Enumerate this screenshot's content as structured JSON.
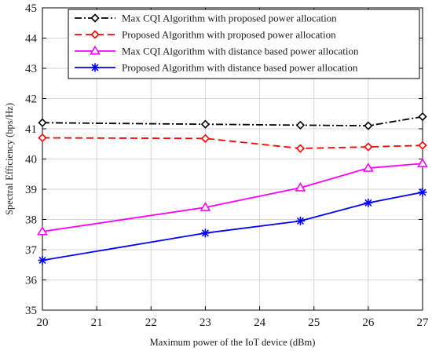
{
  "chart_data": {
    "type": "line",
    "title": "",
    "xlabel": "Maximum power of the IoT device (dBm)",
    "ylabel": "Spectral Efficiency (bps/Hz)",
    "xlim": [
      20,
      27
    ],
    "ylim": [
      35,
      45
    ],
    "x_ticks": [
      20,
      21,
      22,
      23,
      24,
      25,
      26,
      27
    ],
    "y_ticks": [
      35,
      36,
      37,
      38,
      39,
      40,
      41,
      42,
      43,
      44,
      45
    ],
    "grid": true,
    "legend_position": "top-right",
    "series": [
      {
        "name": "Max CQI Algorithm with proposed power allocation",
        "color": "#000000",
        "line_style": "dash-dot",
        "marker": "diamond",
        "x": [
          20,
          23,
          24.75,
          26,
          27
        ],
        "y": [
          41.2,
          41.15,
          41.12,
          41.1,
          41.4
        ]
      },
      {
        "name": "Proposed Algorithm with proposed power allocation",
        "color": "#ff0000",
        "line_style": "dashed",
        "marker": "diamond",
        "x": [
          20,
          23,
          24.75,
          26,
          27
        ],
        "y": [
          40.7,
          40.68,
          40.35,
          40.4,
          40.45
        ]
      },
      {
        "name": "Max CQI Algorithm with distance based power allocation",
        "color": "#ff00ff",
        "line_style": "solid",
        "marker": "triangle",
        "x": [
          20,
          23,
          24.75,
          26,
          27
        ],
        "y": [
          37.6,
          38.4,
          39.05,
          39.7,
          39.85
        ]
      },
      {
        "name": "Proposed Algorithm with distance based power allocation",
        "color": "#0000ff",
        "line_style": "solid",
        "marker": "asterisk",
        "x": [
          20,
          23,
          24.75,
          26,
          27
        ],
        "y": [
          36.65,
          37.55,
          37.95,
          38.55,
          38.9
        ]
      }
    ]
  }
}
